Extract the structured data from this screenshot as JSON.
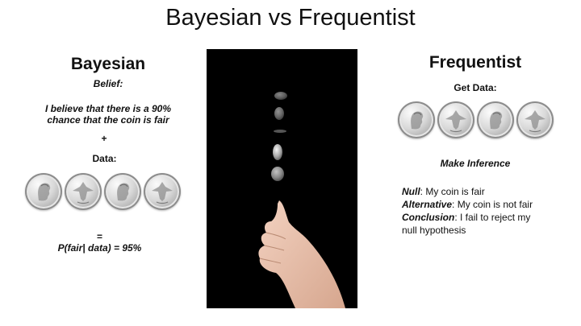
{
  "slide": {
    "title": "Bayesian vs Frequentist"
  },
  "bayesian": {
    "heading": "Bayesian",
    "belief_label": "Belief:",
    "belief_line1": "I believe that there is a 90%",
    "belief_line2": "chance that the coin is fair",
    "plus": "+",
    "data_label": "Data:",
    "coin_faces": [
      "heads",
      "tails",
      "heads",
      "tails"
    ],
    "equals": "=",
    "result": "P(fair| data) = 95%"
  },
  "frequentist": {
    "heading": "Frequentist",
    "get_data_label": "Get Data:",
    "coin_faces": [
      "heads",
      "tails",
      "heads",
      "tails"
    ],
    "inference_label": "Make Inference",
    "null_term": "Null",
    "null_text": ": My coin is fair",
    "alternative_term": "Alternative",
    "alternative_text": ": My coin is not fair",
    "conclusion_term": "Conclusion",
    "conclusion_text_line1": ": I fail to reject my",
    "conclusion_text_line2": "null hypothesis"
  },
  "image": {
    "subject": "hand-flipping-coin-photo"
  }
}
